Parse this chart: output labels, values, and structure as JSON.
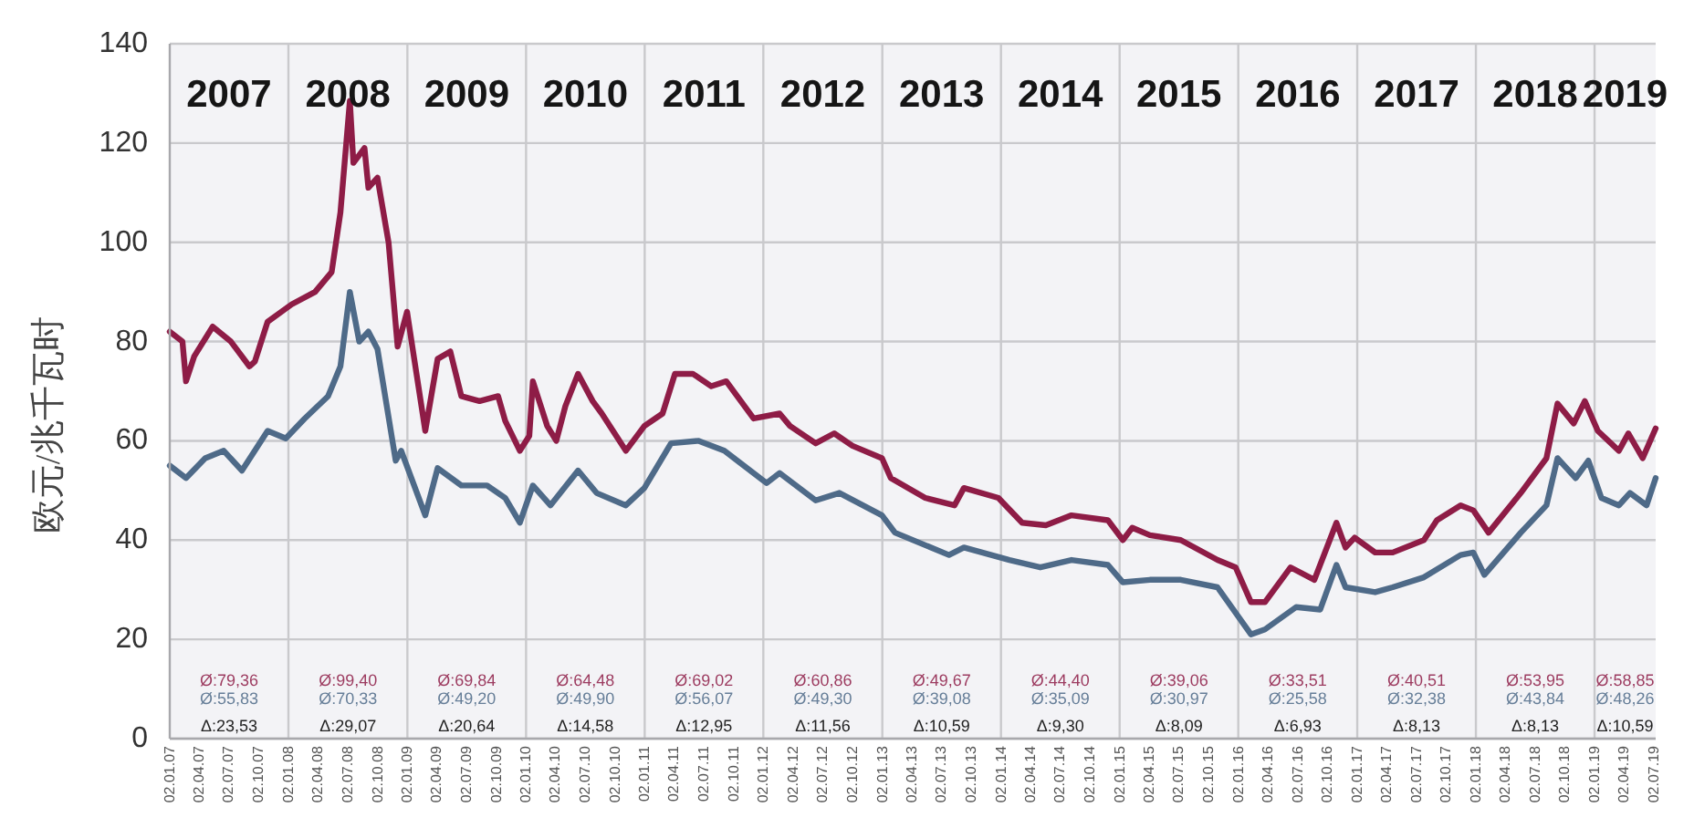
{
  "chart_data": {
    "type": "line",
    "ylabel": "欧元/兆千瓦时",
    "xlim": [
      "2007-01-02",
      "2019-07-09"
    ],
    "ylim": [
      0,
      140
    ],
    "yticks": [
      0,
      20,
      40,
      60,
      80,
      100,
      120,
      140
    ],
    "grid": "y",
    "xticks": [
      {
        "value": "2007-01-02",
        "label": "02.01.07"
      },
      {
        "value": "2007-04-02",
        "label": "02.04.07"
      },
      {
        "value": "2007-07-02",
        "label": "02.07.07"
      },
      {
        "value": "2007-10-02",
        "label": "02.10.07"
      },
      {
        "value": "2008-01-02",
        "label": "02.01.08"
      },
      {
        "value": "2008-04-02",
        "label": "02.04.08"
      },
      {
        "value": "2008-07-02",
        "label": "02.07.08"
      },
      {
        "value": "2008-10-02",
        "label": "02.10.08"
      },
      {
        "value": "2009-01-02",
        "label": "02.01.09"
      },
      {
        "value": "2009-04-02",
        "label": "02.04.09"
      },
      {
        "value": "2009-07-02",
        "label": "02.07.09"
      },
      {
        "value": "2009-10-02",
        "label": "02.10.09"
      },
      {
        "value": "2010-01-02",
        "label": "02.01.10"
      },
      {
        "value": "2010-04-02",
        "label": "02.04.10"
      },
      {
        "value": "2010-07-02",
        "label": "02.07.10"
      },
      {
        "value": "2010-10-02",
        "label": "02.10.10"
      },
      {
        "value": "2011-01-02",
        "label": "02.01.11"
      },
      {
        "value": "2011-04-02",
        "label": "02.04.11"
      },
      {
        "value": "2011-07-02",
        "label": "02.07.11"
      },
      {
        "value": "2011-10-02",
        "label": "02.10.11"
      },
      {
        "value": "2012-01-02",
        "label": "02.01.12"
      },
      {
        "value": "2012-04-02",
        "label": "02.04.12"
      },
      {
        "value": "2012-07-02",
        "label": "02.07.12"
      },
      {
        "value": "2012-10-02",
        "label": "02.10.12"
      },
      {
        "value": "2013-01-02",
        "label": "02.01.13"
      },
      {
        "value": "2013-04-02",
        "label": "02.04.13"
      },
      {
        "value": "2013-07-02",
        "label": "02.07.13"
      },
      {
        "value": "2013-10-02",
        "label": "02.10.13"
      },
      {
        "value": "2014-01-02",
        "label": "02.01.14"
      },
      {
        "value": "2014-04-02",
        "label": "02.04.14"
      },
      {
        "value": "2014-07-02",
        "label": "02.07.14"
      },
      {
        "value": "2014-10-02",
        "label": "02.10.14"
      },
      {
        "value": "2015-01-02",
        "label": "02.01.15"
      },
      {
        "value": "2015-04-02",
        "label": "02.04.15"
      },
      {
        "value": "2015-07-02",
        "label": "02.07.15"
      },
      {
        "value": "2015-10-02",
        "label": "02.10.15"
      },
      {
        "value": "2016-01-02",
        "label": "02.01.16"
      },
      {
        "value": "2016-04-02",
        "label": "02.04.16"
      },
      {
        "value": "2016-07-02",
        "label": "02.07.16"
      },
      {
        "value": "2016-10-02",
        "label": "02.10.16"
      },
      {
        "value": "2017-01-02",
        "label": "02.01.17"
      },
      {
        "value": "2017-04-02",
        "label": "02.04.17"
      },
      {
        "value": "2017-07-02",
        "label": "02.07.17"
      },
      {
        "value": "2017-10-02",
        "label": "02.10.17"
      },
      {
        "value": "2018-01-02",
        "label": "02.01.18"
      },
      {
        "value": "2018-04-02",
        "label": "02.04.18"
      },
      {
        "value": "2018-07-02",
        "label": "02.07.18"
      },
      {
        "value": "2018-10-02",
        "label": "02.10.18"
      },
      {
        "value": "2019-01-02",
        "label": "02.01.19"
      },
      {
        "value": "2019-04-02",
        "label": "02.04.19"
      },
      {
        "value": "2019-07-02",
        "label": "02.07.19"
      }
    ],
    "ref_lines": [
      {
        "axis": "x",
        "value": "2008-01-02",
        "color": "#c9c9cc"
      },
      {
        "axis": "x",
        "value": "2009-01-02",
        "color": "#c9c9cc"
      },
      {
        "axis": "x",
        "value": "2010-01-02",
        "color": "#c9c9cc"
      },
      {
        "axis": "x",
        "value": "2011-01-02",
        "color": "#c9c9cc"
      },
      {
        "axis": "x",
        "value": "2012-01-02",
        "color": "#c9c9cc"
      },
      {
        "axis": "x",
        "value": "2013-01-02",
        "color": "#c9c9cc"
      },
      {
        "axis": "x",
        "value": "2014-01-02",
        "color": "#c9c9cc"
      },
      {
        "axis": "x",
        "value": "2015-01-02",
        "color": "#c9c9cc"
      },
      {
        "axis": "x",
        "value": "2016-01-02",
        "color": "#c9c9cc"
      },
      {
        "axis": "x",
        "value": "2017-01-02",
        "color": "#c9c9cc"
      },
      {
        "axis": "x",
        "value": "2018-01-02",
        "color": "#c9c9cc"
      },
      {
        "axis": "x",
        "value": "2019-01-02",
        "color": "#c9c9cc"
      }
    ],
    "series": [
      {
        "color": "#8e1c46",
        "x": [
          "2007-01-02",
          "2007-02-10",
          "2007-02-21",
          "2007-03-18",
          "2007-05-14",
          "2007-07-09",
          "2007-09-04",
          "2007-09-21",
          "2007-10-30",
          "2008-01-12",
          "2008-03-24",
          "2008-05-14",
          "2008-06-10",
          "2008-07-09",
          "2008-07-20",
          "2008-08-23",
          "2008-09-04",
          "2008-10-02",
          "2008-11-05",
          "2008-12-03",
          "2009-01-01",
          "2009-01-23",
          "2009-02-26",
          "2009-04-05",
          "2009-05-14",
          "2009-06-17",
          "2009-08-12",
          "2009-10-08",
          "2009-10-30",
          "2009-12-14",
          "2010-01-12",
          "2010-01-23",
          "2010-03-08",
          "2010-04-05",
          "2010-05-03",
          "2010-06-11",
          "2010-07-26",
          "2010-08-23",
          "2010-11-05",
          "2011-01-01",
          "2011-02-26",
          "2011-04-05",
          "2011-05-30",
          "2011-07-26",
          "2011-09-10",
          "2011-12-03",
          "2012-02-21",
          "2012-03-24",
          "2012-06-11",
          "2012-08-07",
          "2012-10-02",
          "2013-01-01",
          "2013-01-28",
          "2013-05-14",
          "2013-08-12",
          "2013-09-10",
          "2013-12-25",
          "2014-03-08",
          "2014-05-20",
          "2014-08-07",
          "2014-11-27",
          "2015-01-12",
          "2015-02-10",
          "2015-04-05",
          "2015-07-09",
          "2015-10-30",
          "2015-12-25",
          "2016-02-10",
          "2016-03-24",
          "2016-06-11",
          "2016-08-23",
          "2016-10-30",
          "2016-11-27",
          "2016-12-25",
          "2017-02-26",
          "2017-04-21",
          "2017-07-26",
          "2017-09-04",
          "2017-11-16",
          "2017-12-25",
          "2018-02-10",
          "2018-05-20",
          "2018-08-07",
          "2018-09-10",
          "2018-10-30",
          "2018-12-03",
          "2019-01-12",
          "2019-03-18",
          "2019-04-16",
          "2019-05-30",
          "2019-07-09"
        ],
        "values": [
          82,
          80,
          72,
          77,
          83,
          80,
          75,
          76,
          84,
          87.5,
          90,
          94,
          106,
          128.5,
          116,
          119,
          111,
          113,
          100,
          79,
          86,
          76.5,
          62,
          76.5,
          78,
          69,
          68,
          69,
          64,
          58,
          61,
          72,
          63,
          60,
          67,
          73.5,
          68,
          65.5,
          58,
          63,
          65.5,
          73.5,
          73.5,
          71,
          72,
          64.5,
          65.5,
          63,
          59.5,
          61.5,
          59,
          56.5,
          52.5,
          48.5,
          47,
          50.5,
          48.5,
          43.5,
          43,
          45,
          44,
          40,
          42.5,
          41,
          40,
          36,
          34.5,
          27.5,
          27.5,
          34.5,
          32,
          43.5,
          38.5,
          40.5,
          37.5,
          37.5,
          40,
          44,
          47,
          46,
          41.5,
          49.5,
          56.5,
          67.5,
          63.5,
          68,
          62,
          58,
          61.5,
          56.5,
          62.5
        ]
      },
      {
        "color": "#4e6a88",
        "x": [
          "2007-01-02",
          "2007-02-21",
          "2007-04-21",
          "2007-06-17",
          "2007-08-12",
          "2007-10-30",
          "2007-12-25",
          "2008-02-21",
          "2008-05-03",
          "2008-06-10",
          "2008-07-09",
          "2008-08-07",
          "2008-09-04",
          "2008-10-02",
          "2008-11-27",
          "2008-12-14",
          "2009-02-26",
          "2009-04-05",
          "2009-06-17",
          "2009-09-04",
          "2009-10-30",
          "2009-12-14",
          "2010-01-23",
          "2010-03-18",
          "2010-06-11",
          "2010-08-07",
          "2010-11-05",
          "2011-01-01",
          "2011-03-24",
          "2011-06-17",
          "2011-09-04",
          "2012-01-12",
          "2012-02-21",
          "2012-06-11",
          "2012-08-23",
          "2013-01-01",
          "2013-02-10",
          "2013-07-26",
          "2013-09-10",
          "2014-01-28",
          "2014-05-03",
          "2014-08-07",
          "2014-11-27",
          "2015-01-12",
          "2015-04-05",
          "2015-07-09",
          "2015-10-30",
          "2016-02-10",
          "2016-03-24",
          "2016-06-28",
          "2016-09-10",
          "2016-10-30",
          "2016-11-27",
          "2017-02-26",
          "2017-04-21",
          "2017-07-26",
          "2017-11-16",
          "2017-12-25",
          "2018-01-28",
          "2018-05-20",
          "2018-08-07",
          "2018-09-10",
          "2018-11-05",
          "2018-12-14",
          "2019-01-23",
          "2019-03-18",
          "2019-04-21",
          "2019-06-11",
          "2019-07-09"
        ],
        "values": [
          55,
          52.5,
          56.5,
          58,
          54,
          62,
          60.5,
          64.5,
          69,
          75,
          90,
          80,
          82,
          78.5,
          56,
          58,
          45,
          54.5,
          51,
          51,
          48.5,
          43.5,
          51,
          47,
          54,
          49.5,
          47,
          50.5,
          59.5,
          60,
          58,
          51.5,
          53.5,
          48,
          49.5,
          45,
          41.5,
          37,
          38.5,
          36,
          34.5,
          36,
          35,
          31.5,
          32,
          32,
          30.5,
          21,
          22,
          26.5,
          26,
          35,
          30.5,
          29.5,
          30.5,
          32.5,
          37,
          37.5,
          33,
          41.5,
          47,
          56.5,
          52.5,
          56,
          48.5,
          47,
          49.5,
          47,
          52.5
        ]
      }
    ],
    "annotations": [
      "2007",
      "Ø:79,36",
      "Ø:55,83",
      "Δ:23,53",
      "2008",
      "Ø:99,40",
      "Ø:70,33",
      "Δ:29,07",
      "2009",
      "Ø:69,84",
      "Ø:49,20",
      "Δ:20,64",
      "2010",
      "Ø:64,48",
      "Ø:49,90",
      "Δ:14,58",
      "2011",
      "Ø:69,02",
      "Ø:56,07",
      "Δ:12,95",
      "2012",
      "Ø:60,86",
      "Ø:49,30",
      "Δ:11,56",
      "2013",
      "Ø:49,67",
      "Ø:39,08",
      "Δ:10,59",
      "2014",
      "Ø:44,40",
      "Ø:35,09",
      "Δ:9,30",
      "2015",
      "Ø:39,06",
      "Ø:30,97",
      "Δ:8,09",
      "2016",
      "Ø:33,51",
      "Ø:25,58",
      "Δ:6,93",
      "2017",
      "Ø:40,51",
      "Ø:32,38",
      "Δ:8,13",
      "2018",
      "Ø:53,95",
      "Ø:43,84",
      "Δ:8,13",
      "2019",
      "Ø:58,85",
      "Ø:48,26",
      "Δ:10,59"
    ]
  }
}
